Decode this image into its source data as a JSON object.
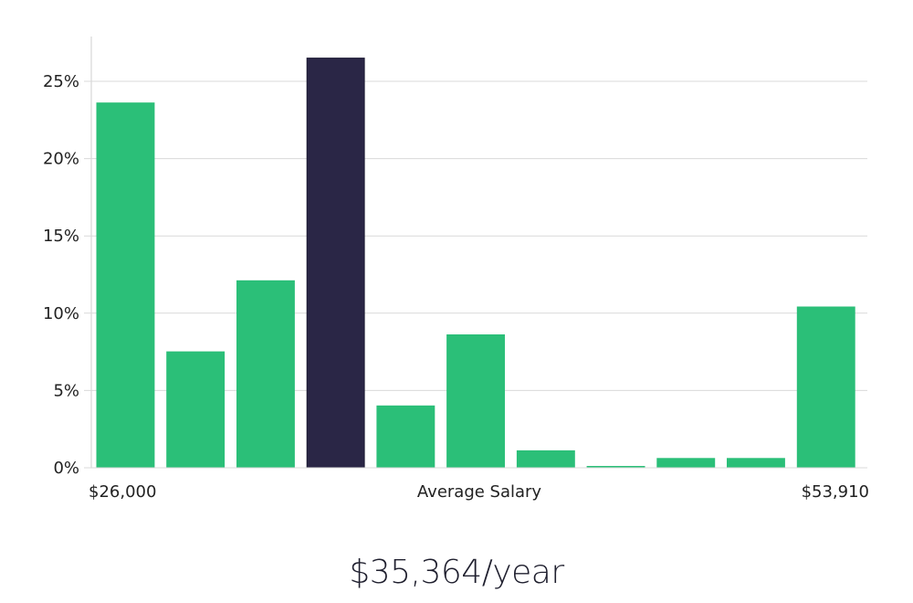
{
  "chart_data": {
    "type": "bar",
    "series": [
      {
        "values": [
          23.6,
          7.5,
          12.1,
          26.5,
          4.0,
          8.6,
          1.1,
          0.05,
          0.6,
          0.6,
          10.4
        ],
        "colors": [
          "#2bbf78",
          "#2bbf78",
          "#2bbf78",
          "#2a2646",
          "#2bbf78",
          "#2bbf78",
          "#2bbf78",
          "#2bbf78",
          "#2bbf78",
          "#2bbf78",
          "#2bbf78"
        ]
      }
    ],
    "highlight_index": 3,
    "y_ticks": [
      "0%",
      "5%",
      "10%",
      "15%",
      "20%",
      "25%"
    ],
    "y_tick_values": [
      0,
      5,
      10,
      15,
      20,
      25
    ],
    "ylim": [
      0,
      28
    ],
    "grid": true,
    "xlabel": "Average Salary",
    "x_min_label": "$26,000",
    "x_max_label": "$53,910",
    "colors": {
      "bar": "#2bbf78",
      "highlight": "#2a2646",
      "grid": "#d9d9d9"
    }
  },
  "footer": {
    "salary": "$35,364/year"
  }
}
